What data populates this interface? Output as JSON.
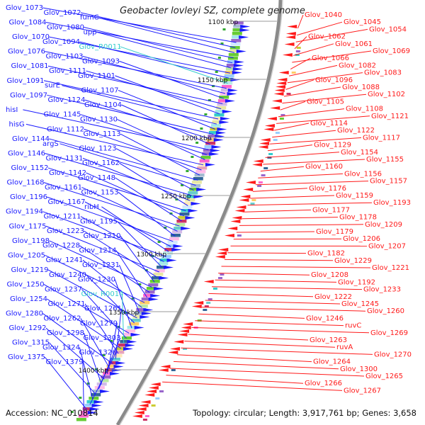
{
  "title": "Geobacter lovleyi SZ, complete genome",
  "footer": {
    "accession": "Accession: NC_010814",
    "summary": "Topology: circular; Length: 3,917,761 bp; Genes: 3,658"
  },
  "colors": {
    "plus_strand": "#1a1aff",
    "minus_strand": "#ff1a1a",
    "rna": "#33cccc",
    "backbone": "#8a8a8a"
  },
  "scale_ticks": [
    "1100 kbp",
    "1150 kbp",
    "1200 kbp",
    "1250 kbp",
    "1300 kbp",
    "1350 kbp",
    "1400 kbp"
  ],
  "left_labels": [
    {
      "text": "Glov_1073",
      "type": "gene"
    },
    {
      "text": "Glov_1072",
      "type": "gene"
    },
    {
      "text": "fumC",
      "type": "gene"
    },
    {
      "text": "Glov_1084",
      "type": "gene"
    },
    {
      "text": "Glov_1080",
      "type": "gene"
    },
    {
      "text": "upp",
      "type": "gene"
    },
    {
      "text": "Glov_1070",
      "type": "gene"
    },
    {
      "text": "Glov_1094",
      "type": "gene"
    },
    {
      "text": "Glov_R0011",
      "type": "rna"
    },
    {
      "text": "Glov_1076",
      "type": "gene"
    },
    {
      "text": "Glov_1103",
      "type": "gene"
    },
    {
      "text": "Glov_1093",
      "type": "gene"
    },
    {
      "text": "Glov_1081",
      "type": "gene"
    },
    {
      "text": "Glov_1111",
      "type": "gene"
    },
    {
      "text": "Glov_1101",
      "type": "gene"
    },
    {
      "text": "Glov_1091",
      "type": "gene"
    },
    {
      "text": "surE",
      "type": "gene"
    },
    {
      "text": "Glov_1107",
      "type": "gene"
    },
    {
      "text": "Glov_1097",
      "type": "gene"
    },
    {
      "text": "Glov_1124",
      "type": "gene"
    },
    {
      "text": "Glov_1104",
      "type": "gene"
    },
    {
      "text": "hisI",
      "type": "gene"
    },
    {
      "text": "Glov_1145",
      "type": "gene"
    },
    {
      "text": "Glov_1130",
      "type": "gene"
    },
    {
      "text": "hisG",
      "type": "gene"
    },
    {
      "text": "Glov_1112",
      "type": "gene"
    },
    {
      "text": "Glov_1113",
      "type": "gene"
    },
    {
      "text": "Glov_1144",
      "type": "gene"
    },
    {
      "text": "argS",
      "type": "gene"
    },
    {
      "text": "Glov_1123",
      "type": "gene"
    },
    {
      "text": "Glov_1146",
      "type": "gene"
    },
    {
      "text": "Glov_1131",
      "type": "gene"
    },
    {
      "text": "Glov_1162",
      "type": "gene"
    },
    {
      "text": "Glov_1152",
      "type": "gene"
    },
    {
      "text": "Glov_1142",
      "type": "gene"
    },
    {
      "text": "Glov_1148",
      "type": "gene"
    },
    {
      "text": "Glov_1168",
      "type": "gene"
    },
    {
      "text": "Glov_1161",
      "type": "gene"
    },
    {
      "text": "Glov_1153",
      "type": "gene"
    },
    {
      "text": "Glov_1196",
      "type": "gene"
    },
    {
      "text": "Glov_1167",
      "type": "gene"
    },
    {
      "text": "ribH",
      "type": "gene"
    },
    {
      "text": "Glov_1194",
      "type": "gene"
    },
    {
      "text": "Glov_1211",
      "type": "gene"
    },
    {
      "text": "Glov_1195",
      "type": "gene"
    },
    {
      "text": "Glov_1175",
      "type": "gene"
    },
    {
      "text": "Glov_1223",
      "type": "gene"
    },
    {
      "text": "Glov_1210",
      "type": "gene"
    },
    {
      "text": "Glov_1198",
      "type": "gene"
    },
    {
      "text": "Glov_1228",
      "type": "gene"
    },
    {
      "text": "Glov_1214",
      "type": "gene"
    },
    {
      "text": "Glov_1205",
      "type": "gene"
    },
    {
      "text": "Glov_1241",
      "type": "gene"
    },
    {
      "text": "Glov_1231",
      "type": "gene"
    },
    {
      "text": "Glov_1219",
      "type": "gene"
    },
    {
      "text": "Glov_1240",
      "type": "gene"
    },
    {
      "text": "Glov_1230",
      "type": "gene"
    },
    {
      "text": "Glov_1250",
      "type": "gene"
    },
    {
      "text": "Glov_1237",
      "type": "gene"
    },
    {
      "text": "Glov_R0014",
      "type": "rna"
    },
    {
      "text": "Glov_1254",
      "type": "gene"
    },
    {
      "text": "Glov_1271",
      "type": "gene"
    },
    {
      "text": "Glov_1261",
      "type": "gene"
    },
    {
      "text": "Glov_1280",
      "type": "gene"
    },
    {
      "text": "Glov_1262",
      "type": "gene"
    },
    {
      "text": "Glov_1279",
      "type": "gene"
    },
    {
      "text": "Glov_1292",
      "type": "gene"
    },
    {
      "text": "Glov_1298",
      "type": "gene"
    },
    {
      "text": "Glov_1303",
      "type": "gene"
    },
    {
      "text": "Glov_1315",
      "type": "gene"
    },
    {
      "text": "Glov_1324",
      "type": "gene"
    },
    {
      "text": "Glov_1326",
      "type": "gene"
    },
    {
      "text": "Glov_1375",
      "type": "gene"
    },
    {
      "text": "Glov_1379",
      "type": "gene"
    }
  ],
  "right_labels": [
    "Glov_1040",
    "Glov_1045",
    "Glov_1054",
    "Glov_1062",
    "Glov_1061",
    "Glov_1069",
    "Glov_1066",
    "Glov_1082",
    "Glov_1083",
    "Glov_1096",
    "Glov_1088",
    "Glov_1102",
    "Glov_1105",
    "Glov_1108",
    "Glov_1121",
    "Glov_1114",
    "Glov_1122",
    "Glov_1117",
    "Glov_1129",
    "Glov_1154",
    "Glov_1155",
    "Glov_1160",
    "Glov_1156",
    "Glov_1157",
    "Glov_1176",
    "Glov_1159",
    "Glov_1193",
    "Glov_1177",
    "Glov_1178",
    "Glov_1209",
    "Glov_1179",
    "Glov_1206",
    "Glov_1207",
    "Glov_1182",
    "Glov_1229",
    "Glov_1221",
    "Glov_1208",
    "Glov_1192",
    "Glov_1233",
    "Glov_1222",
    "Glov_1245",
    "Glov_1260",
    "Glov_1246",
    "ruvC",
    "Glov_1269",
    "Glov_1263",
    "ruvA",
    "Glov_1270",
    "Glov_1264",
    "Glov_1300",
    "Glov_1265",
    "Glov_1266",
    "Glov_1267"
  ]
}
